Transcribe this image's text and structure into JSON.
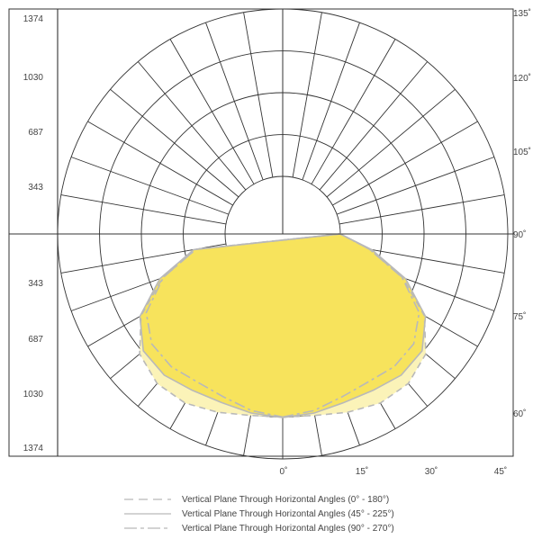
{
  "chart_data": {
    "type": "polar-photometric",
    "radial_ticks": [
      "343",
      "687",
      "1030",
      "1374"
    ],
    "radial_values": [
      343,
      687,
      1030,
      1374
    ],
    "r_max": 1374,
    "angle_ticks_right": [
      "135˚",
      "120˚",
      "105˚",
      "90˚",
      "75˚",
      "60˚"
    ],
    "angle_ticks_bottom": [
      "0˚",
      "15˚",
      "30˚",
      "45˚"
    ],
    "angle_step_deg": 10,
    "grid": true,
    "series": [
      {
        "name": "Vertical Plane Through Horizontal Angles (0° - 180°)",
        "line": "dashed",
        "angles_deg": [
          0,
          10,
          20,
          30,
          40,
          50,
          60,
          70,
          80,
          90
        ],
        "values": [
          1030,
          1040,
          1085,
          1130,
          1130,
          1060,
          870,
          575,
          250,
          0
        ]
      },
      {
        "name": "Vertical Plane Through Horizontal Angles (45° - 225°)",
        "line": "solid",
        "angles_deg": [
          0,
          10,
          20,
          30,
          40,
          50,
          60,
          70,
          80,
          90
        ],
        "values": [
          1035,
          1020,
          1000,
          1010,
          1040,
          1020,
          880,
          600,
          270,
          0
        ]
      },
      {
        "name": "Vertical Plane Through Horizontal Angles (90° - 270°)",
        "line": "dash-dot",
        "angles_deg": [
          0,
          10,
          20,
          30,
          40,
          50,
          60,
          70,
          80,
          90
        ],
        "values": [
          1030,
          1000,
          950,
          930,
          950,
          930,
          820,
          570,
          250,
          0
        ]
      }
    ],
    "fill_colors": [
      "#FBF3B8",
      "#F7E35C"
    ],
    "line_color": "#B9B9B9"
  }
}
